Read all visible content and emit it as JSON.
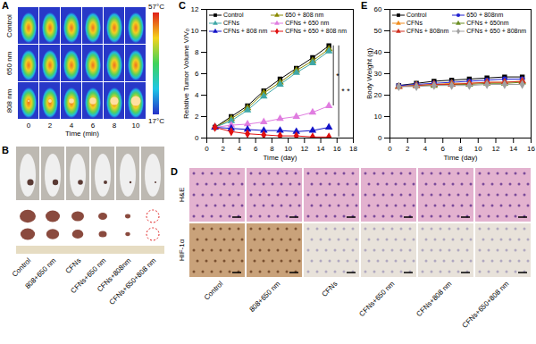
{
  "panel_labels": [
    "A",
    "B",
    "C",
    "D",
    "E"
  ],
  "panel_A": {
    "row_labels": [
      "Control",
      "650 nm",
      "808 nm"
    ],
    "time_ticks": [
      0,
      2,
      4,
      6,
      8,
      10
    ],
    "xlabel": "Time (min)",
    "colorbar": {
      "range": [
        17,
        57
      ],
      "ticks": [
        {
          "value": 57,
          "label": "57°C"
        },
        {
          "value": 17,
          "label": "17°C"
        }
      ]
    }
  },
  "panel_B": {
    "labels": [
      "Control",
      "808+650 nm",
      "CFNs",
      "CFNs+650 nm",
      "CFNs+808nm",
      "CFNs+650+808 nm"
    ]
  },
  "panel_D": {
    "row_labels": [
      "H&E",
      "HIF-1α"
    ],
    "column_labels": [
      "Control",
      "808+650 nm",
      "CFNs",
      "CFNs+650 nm",
      "CFNs+808 nm",
      "CFNs+650+808 nm"
    ]
  },
  "chart_data": [
    {
      "type": "line",
      "xlabel": "Time (day)",
      "ylabel": "Relative Tumor Volume V/V₀",
      "x": [
        1,
        3,
        5,
        7,
        9,
        11,
        13,
        15
      ],
      "xlim": [
        0,
        18
      ],
      "xticks": [
        0,
        2,
        4,
        6,
        8,
        10,
        12,
        14,
        16,
        18
      ],
      "ylim": [
        0,
        12
      ],
      "yticks": [
        0,
        2,
        4,
        6,
        8,
        10,
        12
      ],
      "grid": false,
      "legend": "upper left",
      "series": [
        {
          "name": "Control",
          "color": "#000000",
          "marker": "square",
          "values": [
            1,
            2.0,
            3.0,
            4.4,
            5.5,
            6.5,
            7.5,
            8.6
          ]
        },
        {
          "name": "650 + 808 nm",
          "color": "#8a8a00",
          "marker": "triangle",
          "values": [
            1,
            1.8,
            2.8,
            4.2,
            5.2,
            6.3,
            7.2,
            8.3
          ]
        },
        {
          "name": "CFNs",
          "color": "#3fa7a7",
          "marker": "triangle",
          "values": [
            1,
            1.6,
            2.6,
            3.9,
            5.0,
            6.1,
            7.0,
            8.1
          ]
        },
        {
          "name": "CFNs + 650 nm",
          "color": "#e07de0",
          "marker": "triangle",
          "values": [
            1,
            1.2,
            1.3,
            1.5,
            1.8,
            2.0,
            2.4,
            3.0
          ]
        },
        {
          "name": "CFNs + 808 nm",
          "color": "#1414c8",
          "marker": "triangle",
          "values": [
            1,
            0.9,
            0.8,
            0.7,
            0.7,
            0.6,
            0.7,
            1.0
          ]
        },
        {
          "name": "CFNs + 650 + 808 nm",
          "color": "#e01010",
          "marker": "diamond",
          "values": [
            1,
            0.6,
            0.4,
            0.3,
            0.2,
            0.2,
            0.1,
            0.1
          ]
        }
      ],
      "annotations": [
        {
          "text": "*",
          "between": [
            "Control",
            "CFNs + 650 nm"
          ]
        },
        {
          "text": "* *",
          "between": [
            "Control",
            "CFNs + 650 + 808 nm"
          ]
        }
      ]
    },
    {
      "type": "line",
      "xlabel": "Time (day)",
      "ylabel": "Body Weight (g)",
      "x": [
        1,
        3,
        5,
        7,
        9,
        11,
        13,
        15
      ],
      "xlim": [
        0,
        16
      ],
      "xticks": [
        0,
        2,
        4,
        6,
        8,
        10,
        12,
        14,
        16
      ],
      "ylim": [
        0,
        60
      ],
      "yticks": [
        0,
        10,
        20,
        30,
        40,
        50,
        60
      ],
      "grid": false,
      "legend": "upper left",
      "series": [
        {
          "name": "Control",
          "color": "#000000",
          "marker": "square",
          "values": [
            24.5,
            25.5,
            26.5,
            27.0,
            27.5,
            28.0,
            28.5,
            28.5
          ]
        },
        {
          "name": "650 + 808nm",
          "color": "#2020d0",
          "marker": "circle",
          "values": [
            24.5,
            25.0,
            25.5,
            26.0,
            26.5,
            27.0,
            27.5,
            27.5
          ]
        },
        {
          "name": "CFNs",
          "color": "#f08c1e",
          "marker": "triangle",
          "values": [
            24.0,
            24.5,
            25.0,
            25.5,
            25.5,
            26.0,
            26.0,
            26.5
          ]
        },
        {
          "name": "CFNs + 650nm",
          "color": "#6b8e23",
          "marker": "triangle",
          "values": [
            24.0,
            24.5,
            24.5,
            25.0,
            25.0,
            25.5,
            25.5,
            26.0
          ]
        },
        {
          "name": "CFNs + 808nm",
          "color": "#d03020",
          "marker": "triangle",
          "values": [
            24.0,
            24.5,
            25.0,
            25.0,
            25.5,
            26.0,
            26.0,
            26.5
          ]
        },
        {
          "name": "CFNs + 650 + 808nm",
          "color": "#a0a0a0",
          "marker": "diamond",
          "values": [
            24.0,
            24.0,
            24.5,
            24.5,
            24.5,
            25.0,
            25.0,
            25.0
          ]
        }
      ]
    }
  ]
}
